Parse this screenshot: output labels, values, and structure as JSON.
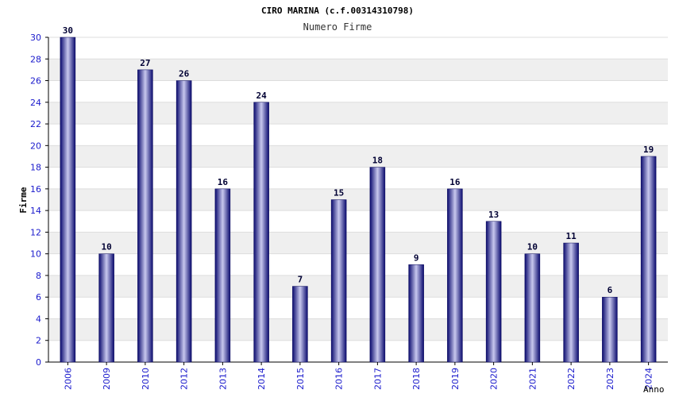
{
  "chart_data": {
    "type": "bar",
    "title": "CIRO MARINA (c.f.00314310798)",
    "subtitle": "Numero Firme",
    "xlabel": "Anno",
    "ylabel": "Firme",
    "categories": [
      "2006",
      "2009",
      "2010",
      "2012",
      "2013",
      "2014",
      "2015",
      "2016",
      "2017",
      "2018",
      "2019",
      "2020",
      "2021",
      "2022",
      "2023",
      "2024"
    ],
    "values": [
      30,
      10,
      27,
      26,
      16,
      24,
      7,
      15,
      18,
      9,
      16,
      13,
      10,
      11,
      6,
      19
    ],
    "ylim": [
      0,
      30
    ],
    "yticks": [
      0,
      2,
      4,
      6,
      8,
      10,
      12,
      14,
      16,
      18,
      20,
      22,
      24,
      26,
      28,
      30
    ],
    "grid": true,
    "colors": {
      "bar_dark": "#0a0a6e",
      "bar_light": "#c8c8ee",
      "band": "#efefef",
      "tick_text": "#1a1acc"
    }
  }
}
